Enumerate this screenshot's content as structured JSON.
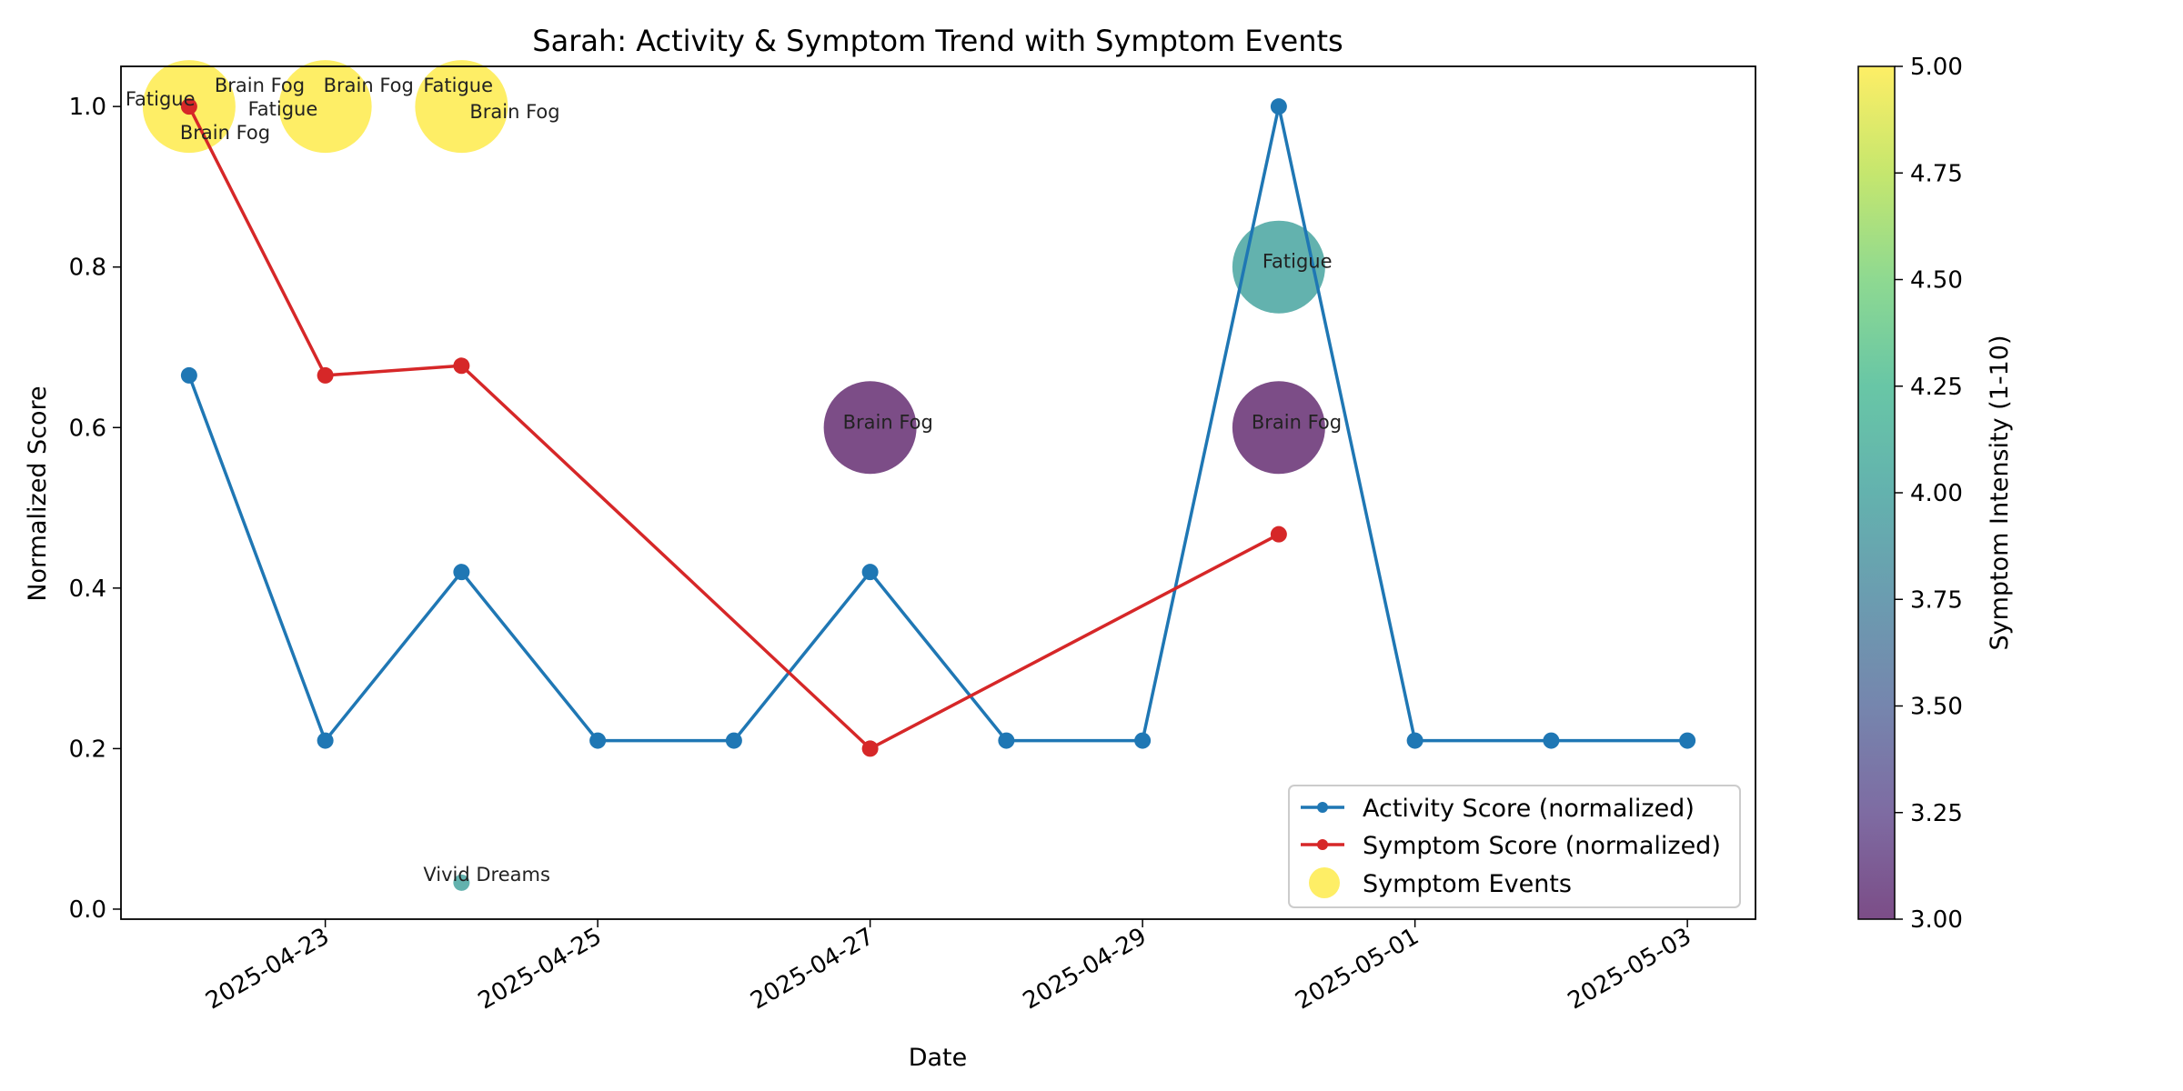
{
  "chart_data": {
    "type": "line",
    "title": "Sarah: Activity & Symptom Trend with Symptom Events",
    "xlabel": "Date",
    "ylabel": "Normalized Score",
    "ylim": [
      0,
      1.05
    ],
    "yticks": [
      "0.0",
      "0.2",
      "0.4",
      "0.6",
      "0.8",
      "1.0"
    ],
    "xticks": [
      "2025-04-23",
      "2025-04-25",
      "2025-04-27",
      "2025-04-29",
      "2025-05-01",
      "2025-05-03"
    ],
    "grid": false,
    "legend_position": "lower-right",
    "series": [
      {
        "name": "Activity Score (normalized)",
        "color": "#1f77b4",
        "points": [
          {
            "x": "2025-04-22",
            "y": 0.665
          },
          {
            "x": "2025-04-23",
            "y": 0.21
          },
          {
            "x": "2025-04-24",
            "y": 0.42
          },
          {
            "x": "2025-04-25",
            "y": 0.21
          },
          {
            "x": "2025-04-26",
            "y": 0.21
          },
          {
            "x": "2025-04-27",
            "y": 0.42
          },
          {
            "x": "2025-04-28",
            "y": 0.21
          },
          {
            "x": "2025-04-29",
            "y": 0.21
          },
          {
            "x": "2025-04-30",
            "y": 1.0
          },
          {
            "x": "2025-05-01",
            "y": 0.21
          },
          {
            "x": "2025-05-02",
            "y": 0.21
          },
          {
            "x": "2025-05-03",
            "y": 0.21
          }
        ]
      },
      {
        "name": "Symptom Score (normalized)",
        "color": "#d62728",
        "points": [
          {
            "x": "2025-04-22",
            "y": 1.0
          },
          {
            "x": "2025-04-23",
            "y": 0.665
          },
          {
            "x": "2025-04-24",
            "y": 0.677
          },
          {
            "x": "2025-04-27",
            "y": 0.2
          },
          {
            "x": "2025-04-30",
            "y": 0.467
          }
        ]
      }
    ],
    "events": {
      "name": "Symptom Events",
      "items": [
        {
          "x": "2025-04-22",
          "y": 1.0,
          "intensity": 5,
          "labels": [
            "Fatigue",
            "Brain Fog",
            "Brain Fog"
          ]
        },
        {
          "x": "2025-04-23",
          "y": 1.0,
          "intensity": 5,
          "labels": [
            "Brain Fog",
            "Fatigue"
          ]
        },
        {
          "x": "2025-04-24",
          "y": 1.0,
          "intensity": 5,
          "labels": [
            "Fatigue",
            "Brain Fog"
          ]
        },
        {
          "x": "2025-04-24",
          "y": 0.033,
          "intensity": 4,
          "labels": [
            "Vivid Dreams"
          ]
        },
        {
          "x": "2025-04-27",
          "y": 0.6,
          "intensity": 3,
          "labels": [
            "Brain Fog"
          ]
        },
        {
          "x": "2025-04-30",
          "y": 0.8,
          "intensity": 4,
          "labels": [
            "Fatigue"
          ]
        },
        {
          "x": "2025-04-30",
          "y": 0.6,
          "intensity": 3,
          "labels": [
            "Brain Fog"
          ]
        }
      ]
    },
    "colorbar": {
      "label": "Symptom Intensity (1-10)",
      "range": [
        3,
        5
      ],
      "ticks": [
        "3.00",
        "3.25",
        "3.50",
        "3.75",
        "4.00",
        "4.25",
        "4.50",
        "4.75",
        "5.00"
      ],
      "colormap": "viridis"
    }
  }
}
